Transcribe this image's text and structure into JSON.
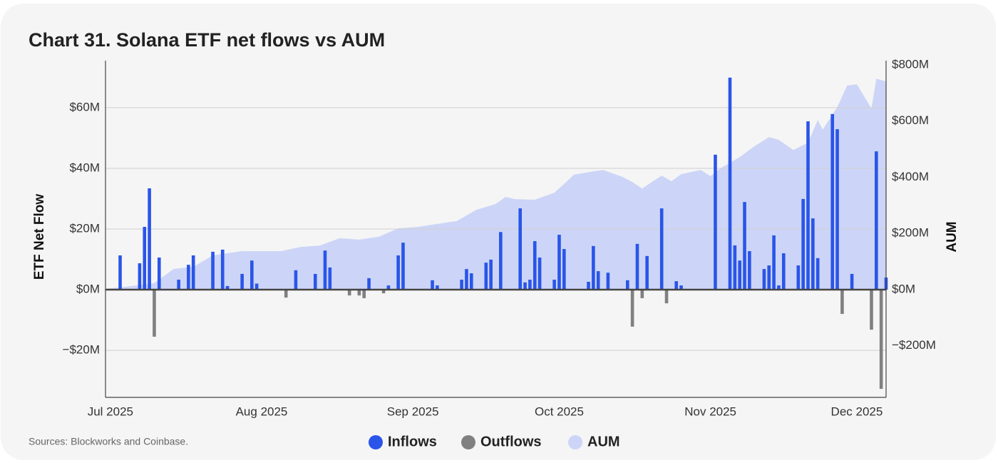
{
  "chart_data": {
    "type": "bar",
    "title": "Chart 31. Solana ETF net flows vs AUM",
    "source": "Sources: Blockworks and Coinbase.",
    "ylabel": "ETF Net Flow",
    "y2label": "AUM",
    "xlim": [
      0,
      160
    ],
    "xticks": [
      {
        "value": 1,
        "label": "Jul 2025"
      },
      {
        "value": 32,
        "label": "Aug 2025"
      },
      {
        "value": 63,
        "label": "Sep 2025"
      },
      {
        "value": 93,
        "label": "Oct 2025"
      },
      {
        "value": 124,
        "label": "Nov 2025"
      },
      {
        "value": 154,
        "label": "Dec 2025"
      }
    ],
    "ylim": [
      -35.5,
      75.5
    ],
    "yticks": [
      {
        "value": -20,
        "label": "−$20M"
      },
      {
        "value": 0,
        "label": "$0M"
      },
      {
        "value": 20,
        "label": "$20M"
      },
      {
        "value": 40,
        "label": "$40M"
      },
      {
        "value": 60,
        "label": "$60M"
      }
    ],
    "y2lim": [
      -383.5,
      815
    ],
    "y2ticks": [
      {
        "value": -200,
        "label": "−$200M"
      },
      {
        "value": 0,
        "label": "$0M"
      },
      {
        "value": 200,
        "label": "$200M"
      },
      {
        "value": 400,
        "label": "$400M"
      },
      {
        "value": 600,
        "label": "$600M"
      },
      {
        "value": 800,
        "label": "$800M"
      }
    ],
    "grid": true,
    "series": [
      {
        "name": "Inflows",
        "color": "#2a55e8",
        "type": "bar",
        "x": [
          3,
          7,
          8,
          9,
          11,
          15,
          17,
          18,
          22,
          24,
          25,
          28,
          30,
          31,
          39,
          43,
          45,
          46,
          54,
          58,
          60,
          61,
          67,
          68,
          73,
          74,
          75,
          78,
          79,
          81,
          85,
          86,
          87,
          88,
          89,
          92,
          93,
          94,
          99,
          100,
          101,
          103,
          107,
          109,
          111,
          114,
          117,
          118,
          125,
          128,
          129,
          130,
          131,
          132,
          135,
          136,
          137,
          138,
          139,
          142,
          143,
          144,
          145,
          146,
          149,
          150,
          153,
          158,
          160
        ],
        "values": [
          11.3,
          8.7,
          20.7,
          33.4,
          10.6,
          3.3,
          8.2,
          11.3,
          12.5,
          13.2,
          1.2,
          5.2,
          9.6,
          2,
          6.4,
          5.2,
          12.9,
          7.3,
          3.8,
          1.4,
          11.3,
          15.5,
          3.1,
          1.4,
          3.3,
          6.8,
          5.4,
          8.9,
          9.9,
          19,
          26.8,
          2.4,
          3.3,
          16,
          10.6,
          3.3,
          18.1,
          13.4,
          2.6,
          14.4,
          6.1,
          5.6,
          3.1,
          15.1,
          11.1,
          26.8,
          2.8,
          1.4,
          44.5,
          69.9,
          14.6,
          9.6,
          28.9,
          12.7,
          6.8,
          8,
          17.9,
          1.4,
          12,
          8,
          29.9,
          55.5,
          23.5,
          10.4,
          57.9,
          52.9,
          5.2,
          45.6,
          4
        ]
      },
      {
        "name": "Outflows",
        "color": "#808080",
        "type": "bar",
        "x": [
          10,
          37,
          50,
          52,
          53,
          57,
          108,
          110,
          115,
          151,
          157,
          159
        ],
        "values": [
          -15.5,
          -2.6,
          -1.9,
          -1.9,
          -2.8,
          -1.2,
          -12.2,
          -2.8,
          -4.5,
          -8,
          -13.2,
          -32.7
        ]
      },
      {
        "name": "AUM",
        "color": "#ccd5f7",
        "type": "area",
        "axis": "y2",
        "x": [
          0,
          3,
          10,
          14,
          18,
          22,
          28,
          32,
          36,
          40,
          44,
          48,
          52,
          56,
          60,
          64,
          68,
          72,
          76,
          80,
          82,
          84,
          88,
          92,
          94,
          96,
          100,
          102,
          106,
          108,
          110,
          112,
          114,
          116,
          118,
          122,
          124,
          126,
          130,
          133,
          136,
          138,
          141,
          144,
          146,
          147,
          150,
          152,
          154,
          157,
          158,
          160
        ],
        "values": [
          3,
          8,
          23,
          74,
          81,
          122,
          137,
          137,
          137,
          152,
          157,
          183,
          178,
          188,
          218,
          223,
          234,
          244,
          284,
          305,
          330,
          322,
          320,
          345,
          376,
          409,
          421,
          426,
          401,
          383,
          360,
          383,
          406,
          386,
          411,
          426,
          404,
          431,
          472,
          510,
          543,
          533,
          497,
          523,
          604,
          569,
          650,
          726,
          731,
          645,
          751,
          741
        ]
      }
    ]
  }
}
